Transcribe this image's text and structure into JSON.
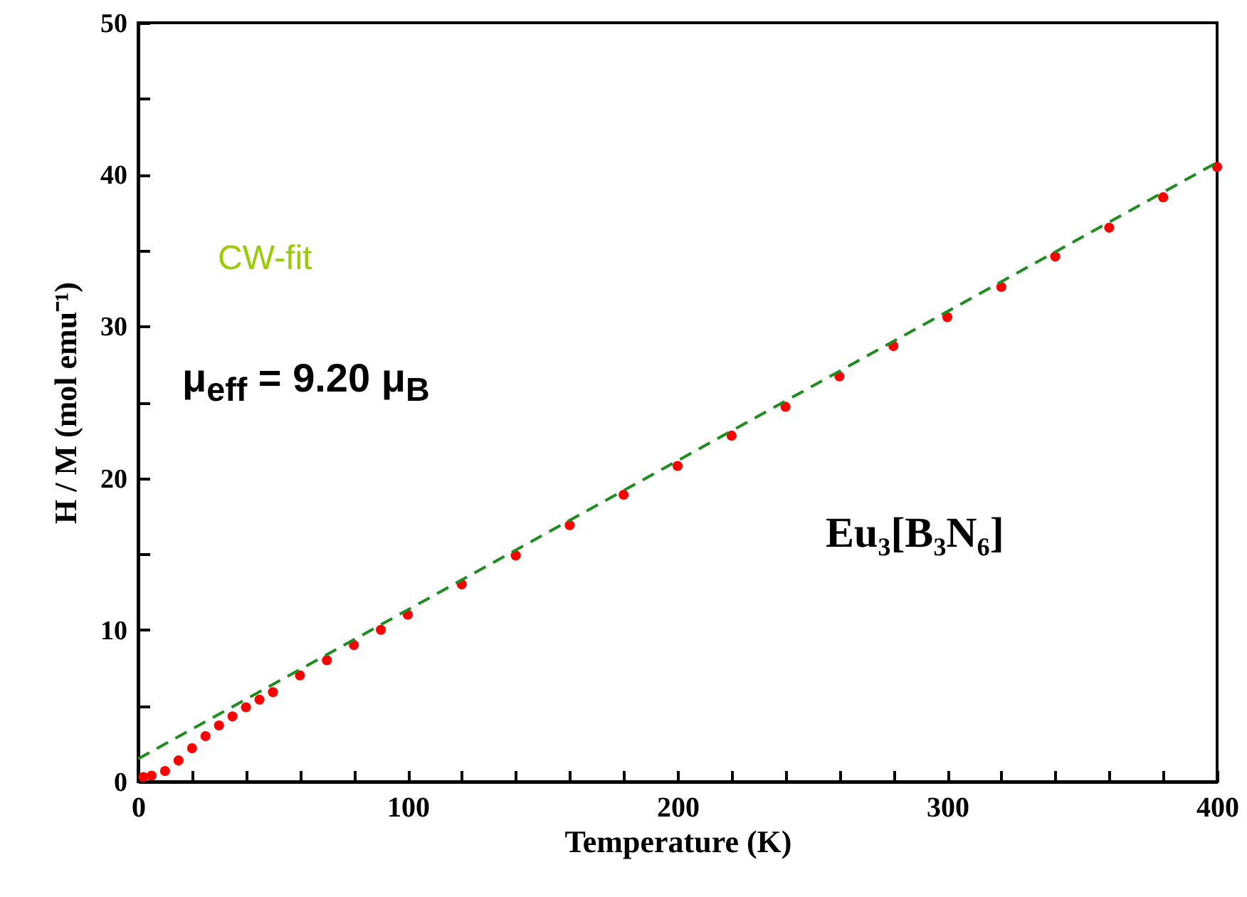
{
  "chart_data": {
    "type": "scatter",
    "xlabel": "Temperature (K)",
    "ylabel": "H / M (mol emu⁻¹)",
    "xlim": [
      0,
      400
    ],
    "ylim": [
      0,
      50
    ],
    "xticks": [
      0,
      {
        "value": 20,
        "label": null
      },
      {
        "value": 40,
        "label": null
      },
      {
        "value": 60,
        "label": null
      },
      {
        "value": 80,
        "label": null
      },
      100,
      {
        "value": 120,
        "label": null
      },
      {
        "value": 140,
        "label": null
      },
      {
        "value": 160,
        "label": null
      },
      {
        "value": 180,
        "label": null
      },
      200,
      {
        "value": 220,
        "label": null
      },
      {
        "value": 240,
        "label": null
      },
      {
        "value": 260,
        "label": null
      },
      {
        "value": 280,
        "label": null
      },
      300,
      {
        "value": 320,
        "label": null
      },
      {
        "value": 340,
        "label": null
      },
      {
        "value": 360,
        "label": null
      },
      {
        "value": 380,
        "label": null
      },
      400
    ],
    "yticks": [
      0,
      {
        "value": 5,
        "label": null
      },
      10,
      {
        "value": 15,
        "label": null
      },
      20,
      {
        "value": 25,
        "label": null
      },
      30,
      {
        "value": 35,
        "label": null
      },
      40,
      {
        "value": 45,
        "label": null
      },
      50
    ],
    "grid": false,
    "series": [
      {
        "color": "#ff0000",
        "marker": "circle",
        "x": [
          2,
          5,
          10,
          15,
          20,
          25,
          30,
          35,
          40,
          45,
          50,
          60,
          70,
          80,
          90,
          100,
          120,
          140,
          160,
          180,
          200,
          220,
          240,
          260,
          280,
          300,
          320,
          340,
          360,
          380,
          400
        ],
        "values": [
          0.3,
          0.4,
          0.7,
          1.4,
          2.2,
          3.0,
          3.7,
          4.3,
          4.9,
          5.4,
          5.9,
          7.0,
          8.0,
          9.0,
          10.0,
          11.0,
          13.0,
          14.9,
          16.9,
          18.9,
          20.8,
          22.8,
          24.7,
          26.7,
          28.7,
          30.6,
          32.6,
          34.6,
          36.5,
          38.5,
          40.5
        ]
      },
      {
        "type": "line",
        "color": "#1e8c1e",
        "line_style": "dashed",
        "x": [
          0,
          400
        ],
        "values": [
          1.5,
          40.8
        ]
      }
    ],
    "annotations": [
      "CW-fit",
      "μ$_{eff}$ = 9.20 μ$_{B}$",
      "Eu₃[B₃N₆]"
    ]
  }
}
